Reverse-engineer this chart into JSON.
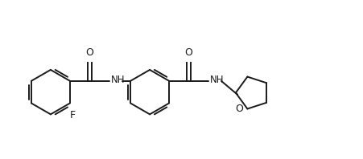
{
  "bg_color": "#ffffff",
  "line_color": "#1a1a1a",
  "line_width": 1.4,
  "font_size": 8.5,
  "figsize": [
    4.52,
    1.98
  ],
  "dpi": 100,
  "xlim": [
    0,
    10
  ],
  "ylim": [
    0,
    4.4
  ]
}
